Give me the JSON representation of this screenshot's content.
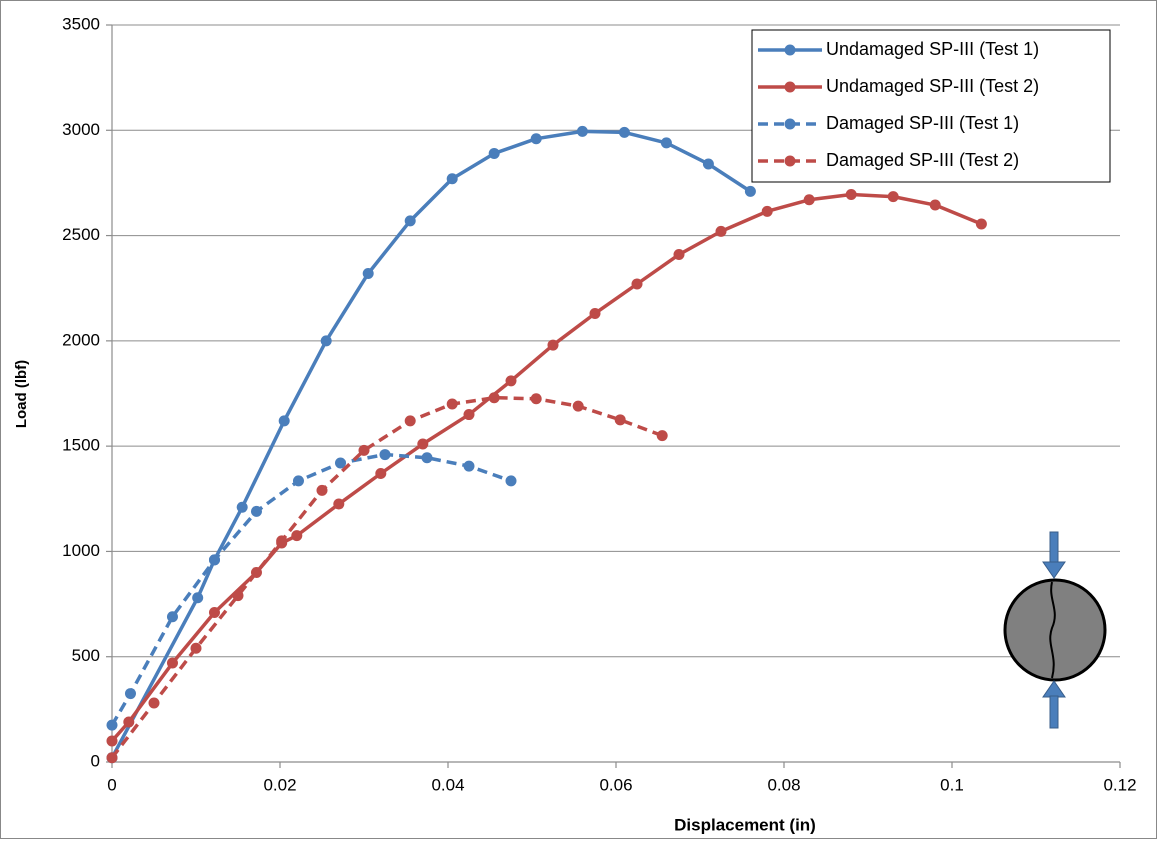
{
  "chart_data": {
    "type": "line",
    "xlabel": "Displacement (in)",
    "ylabel": "Load (lbf)",
    "xlim": [
      0,
      0.12
    ],
    "xticks": [
      0,
      0.02,
      0.04,
      0.06,
      0.08,
      0.1,
      0.12
    ],
    "ylim": [
      0,
      3500
    ],
    "yticks": [
      0,
      500,
      1000,
      1500,
      2000,
      2500,
      3000,
      3500
    ],
    "grid": true,
    "legend": "upper right",
    "series": [
      {
        "name": "Undamaged SP-III (Test 1)",
        "color": "#4a7ebb",
        "dashed": false,
        "x": [
          0,
          0.0102,
          0.0122,
          0.0155,
          0.0205,
          0.0255,
          0.0305,
          0.0355,
          0.0405,
          0.0455,
          0.0505,
          0.056,
          0.061,
          0.066,
          0.071,
          0.076
        ],
        "values": [
          20,
          780,
          960,
          1210,
          1620,
          2000,
          2320,
          2570,
          2770,
          2890,
          2960,
          2995,
          2990,
          2940,
          2840,
          2710
        ]
      },
      {
        "name": "Undamaged SP-III (Test 2)",
        "color": "#be4b48",
        "dashed": false,
        "x": [
          0,
          0.002,
          0.0072,
          0.0122,
          0.0172,
          0.0202,
          0.022,
          0.027,
          0.032,
          0.037,
          0.0425,
          0.0475,
          0.0525,
          0.0575,
          0.0625,
          0.0675,
          0.0725,
          0.078,
          0.083,
          0.088,
          0.093,
          0.098,
          0.1035
        ],
        "values": [
          100,
          190,
          470,
          710,
          900,
          1040,
          1075,
          1225,
          1370,
          1510,
          1650,
          1810,
          1980,
          2130,
          2270,
          2410,
          2520,
          2615,
          2670,
          2695,
          2685,
          2645,
          2555
        ]
      },
      {
        "name": "Damaged SP-III (Test 1)",
        "color": "#4a7ebb",
        "dashed": true,
        "x": [
          0,
          0.0022,
          0.0072,
          0.0122,
          0.0172,
          0.0222,
          0.0272,
          0.0325,
          0.0375,
          0.0425,
          0.0475
        ],
        "values": [
          175,
          325,
          690,
          960,
          1190,
          1335,
          1420,
          1460,
          1445,
          1405,
          1335
        ]
      },
      {
        "name": "Damaged SP-III (Test 2)",
        "color": "#be4b48",
        "dashed": true,
        "x": [
          0,
          0.005,
          0.01,
          0.015,
          0.0202,
          0.025,
          0.03,
          0.0355,
          0.0405,
          0.0455,
          0.0505,
          0.0555,
          0.0605,
          0.0655
        ],
        "values": [
          20,
          280,
          540,
          790,
          1050,
          1290,
          1480,
          1620,
          1700,
          1730,
          1725,
          1690,
          1625,
          1550
        ]
      }
    ]
  }
}
